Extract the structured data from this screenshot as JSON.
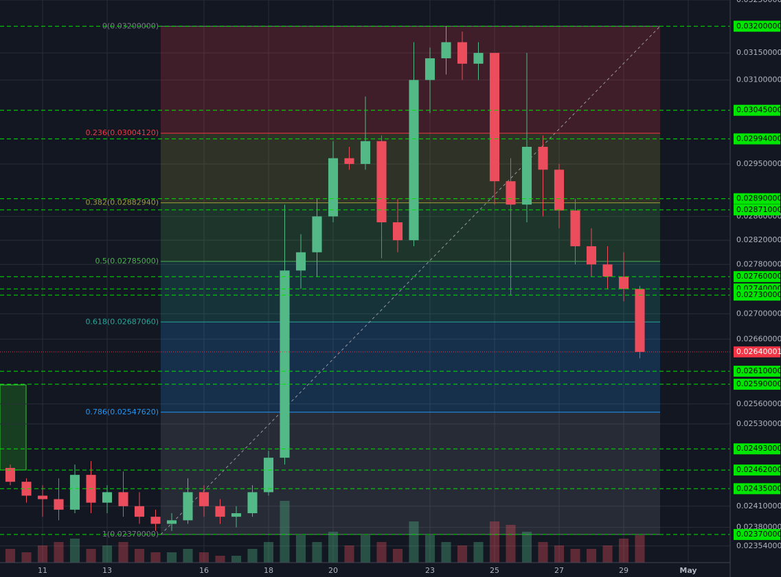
{
  "chart_data": {
    "type": "candlestick",
    "log_scale": true,
    "ylim": [
      0.02331,
      0.0325
    ],
    "xlim": [
      9.681,
      32.298
    ],
    "yticks": [
      {
        "value": 0.0325,
        "label": "0.03250000"
      },
      {
        "value": 0.0315,
        "label": "0.03150000"
      },
      {
        "value": 0.031,
        "label": "0.03100000"
      },
      {
        "value": 0.0295,
        "label": "0.02950000"
      },
      {
        "value": 0.0286,
        "label": "0.02860000"
      },
      {
        "value": 0.0282,
        "label": "0.02820000"
      },
      {
        "value": 0.0278,
        "label": "0.02780000"
      },
      {
        "value": 0.027,
        "label": "0.02700000"
      },
      {
        "value": 0.0266,
        "label": "0.02660000"
      },
      {
        "value": 0.0256,
        "label": "0.02560000"
      },
      {
        "value": 0.0253,
        "label": "0.02530000"
      },
      {
        "value": 0.0241,
        "label": "0.02410000"
      },
      {
        "value": 0.0238,
        "label": "0.02380000"
      },
      {
        "value": 0.02354,
        "label": "0.02354000"
      }
    ],
    "xticks": [
      11,
      13,
      16,
      18,
      20,
      23,
      25,
      27,
      29,
      {
        "value": 31,
        "label": "May"
      }
    ],
    "grid": true,
    "up_color": "#53b987",
    "down_color": "#eb4d5c",
    "level_color": "#00e600",
    "x": [
      10,
      10.5,
      11,
      11.5,
      12,
      12.5,
      13,
      13.5,
      14,
      14.5,
      15,
      15.5,
      16,
      16.5,
      17,
      17.5,
      18,
      18.5,
      19,
      19.5,
      20,
      20.5,
      21,
      21.5,
      22,
      22.5,
      23,
      23.5,
      24,
      24.5,
      25,
      25.5,
      26,
      26.5,
      27,
      27.5,
      28,
      28.5,
      29,
      29.5
    ],
    "open": [
      0.02465,
      0.02445,
      0.02425,
      0.0242,
      0.02405,
      0.02455,
      0.02415,
      0.0243,
      0.0241,
      0.02395,
      0.02385,
      0.0239,
      0.0243,
      0.0241,
      0.02395,
      0.024,
      0.0243,
      0.0248,
      0.0277,
      0.028,
      0.0286,
      0.0296,
      0.0295,
      0.0299,
      0.0285,
      0.0282,
      0.031,
      0.0314,
      0.0317,
      0.0313,
      0.0315,
      0.0292,
      0.0288,
      0.0298,
      0.0294,
      0.0287,
      0.0281,
      0.0278,
      0.0276,
      0.0274
    ],
    "high": [
      0.0247,
      0.0245,
      0.0244,
      0.0245,
      0.0247,
      0.02475,
      0.0244,
      0.0246,
      0.0243,
      0.02405,
      0.024,
      0.0245,
      0.0244,
      0.0242,
      0.0241,
      0.0244,
      0.0249,
      0.0288,
      0.0283,
      0.0289,
      0.0299,
      0.0298,
      0.0307,
      0.03,
      0.0289,
      0.0317,
      0.0316,
      0.032,
      0.0319,
      0.0317,
      0.0315,
      0.0296,
      0.0315,
      0.03,
      0.0295,
      0.0289,
      0.0284,
      0.0281,
      0.028,
      0.02745
    ],
    "low": [
      0.0244,
      0.02415,
      0.02395,
      0.0239,
      0.024,
      0.024,
      0.024,
      0.02395,
      0.02385,
      0.02375,
      0.02375,
      0.02385,
      0.02395,
      0.02385,
      0.0238,
      0.02395,
      0.02425,
      0.0247,
      0.0274,
      0.0276,
      0.0285,
      0.0294,
      0.0294,
      0.0279,
      0.028,
      0.0281,
      0.0304,
      0.0311,
      0.031,
      0.031,
      0.0288,
      0.0273,
      0.0285,
      0.0286,
      0.0284,
      0.0278,
      0.0276,
      0.0274,
      0.0272,
      0.0263
    ],
    "close": [
      0.02445,
      0.02425,
      0.0242,
      0.02405,
      0.02455,
      0.02415,
      0.0243,
      0.0241,
      0.02395,
      0.02385,
      0.0239,
      0.0243,
      0.0241,
      0.02395,
      0.024,
      0.0243,
      0.0248,
      0.0277,
      0.028,
      0.0286,
      0.0296,
      0.0295,
      0.0299,
      0.0285,
      0.0282,
      0.031,
      0.0314,
      0.0317,
      0.0313,
      0.0315,
      0.0292,
      0.0288,
      0.0298,
      0.0294,
      0.0287,
      0.0281,
      0.0278,
      0.0276,
      0.0274,
      0.0264
    ],
    "volume": [
      20,
      15,
      25,
      30,
      35,
      20,
      25,
      30,
      20,
      15,
      15,
      20,
      15,
      10,
      10,
      20,
      30,
      90,
      40,
      30,
      45,
      25,
      40,
      30,
      20,
      60,
      40,
      30,
      25,
      30,
      60,
      55,
      45,
      30,
      25,
      20,
      20,
      25,
      35,
      40
    ],
    "fib_levels": [
      {
        "label": "0(0.03200000)",
        "value": 0.032,
        "color": "#787b86"
      },
      {
        "label": "0.236(0.03004120)",
        "value": 0.0300412,
        "color": "#f23645"
      },
      {
        "label": "0.382(0.02882940)",
        "value": 0.0288294,
        "color": "#9e9e3a"
      },
      {
        "label": "0.5(0.02785000)",
        "value": 0.02785,
        "color": "#4caf50"
      },
      {
        "label": "0.618(0.02687060)",
        "value": 0.0268706,
        "color": "#26a69a"
      },
      {
        "label": "0.786(0.02547620)",
        "value": 0.0254762,
        "color": "#2196f3"
      },
      {
        "label": "1(0.02370000)",
        "value": 0.0237,
        "color": "#787b86"
      }
    ],
    "levels": [
      {
        "value": 0.032,
        "label": "0.03200000"
      },
      {
        "value": 0.03045,
        "label": "0.03045000"
      },
      {
        "value": 0.02994,
        "label": "0.02994000"
      },
      {
        "value": 0.0289,
        "label": "0.02890000"
      },
      {
        "value": 0.02871,
        "label": "0.02871000"
      },
      {
        "value": 0.0276,
        "label": "0.02760000"
      },
      {
        "value": 0.0274,
        "label": "0.02740000"
      },
      {
        "value": 0.0273,
        "label": "0.02730000"
      },
      {
        "value": 0.0261,
        "label": "0.02610000"
      },
      {
        "value": 0.0259,
        "label": "0.02590000"
      },
      {
        "value": 0.02493,
        "label": "0.02493000"
      },
      {
        "value": 0.02462,
        "label": "0.02462000"
      },
      {
        "value": 0.02435,
        "label": "0.02435000"
      },
      {
        "value": 0.0237,
        "label": "0.02370000"
      }
    ],
    "last_price": {
      "value": 0.02640001,
      "label": "0.02640001",
      "color": "#f23645"
    }
  }
}
